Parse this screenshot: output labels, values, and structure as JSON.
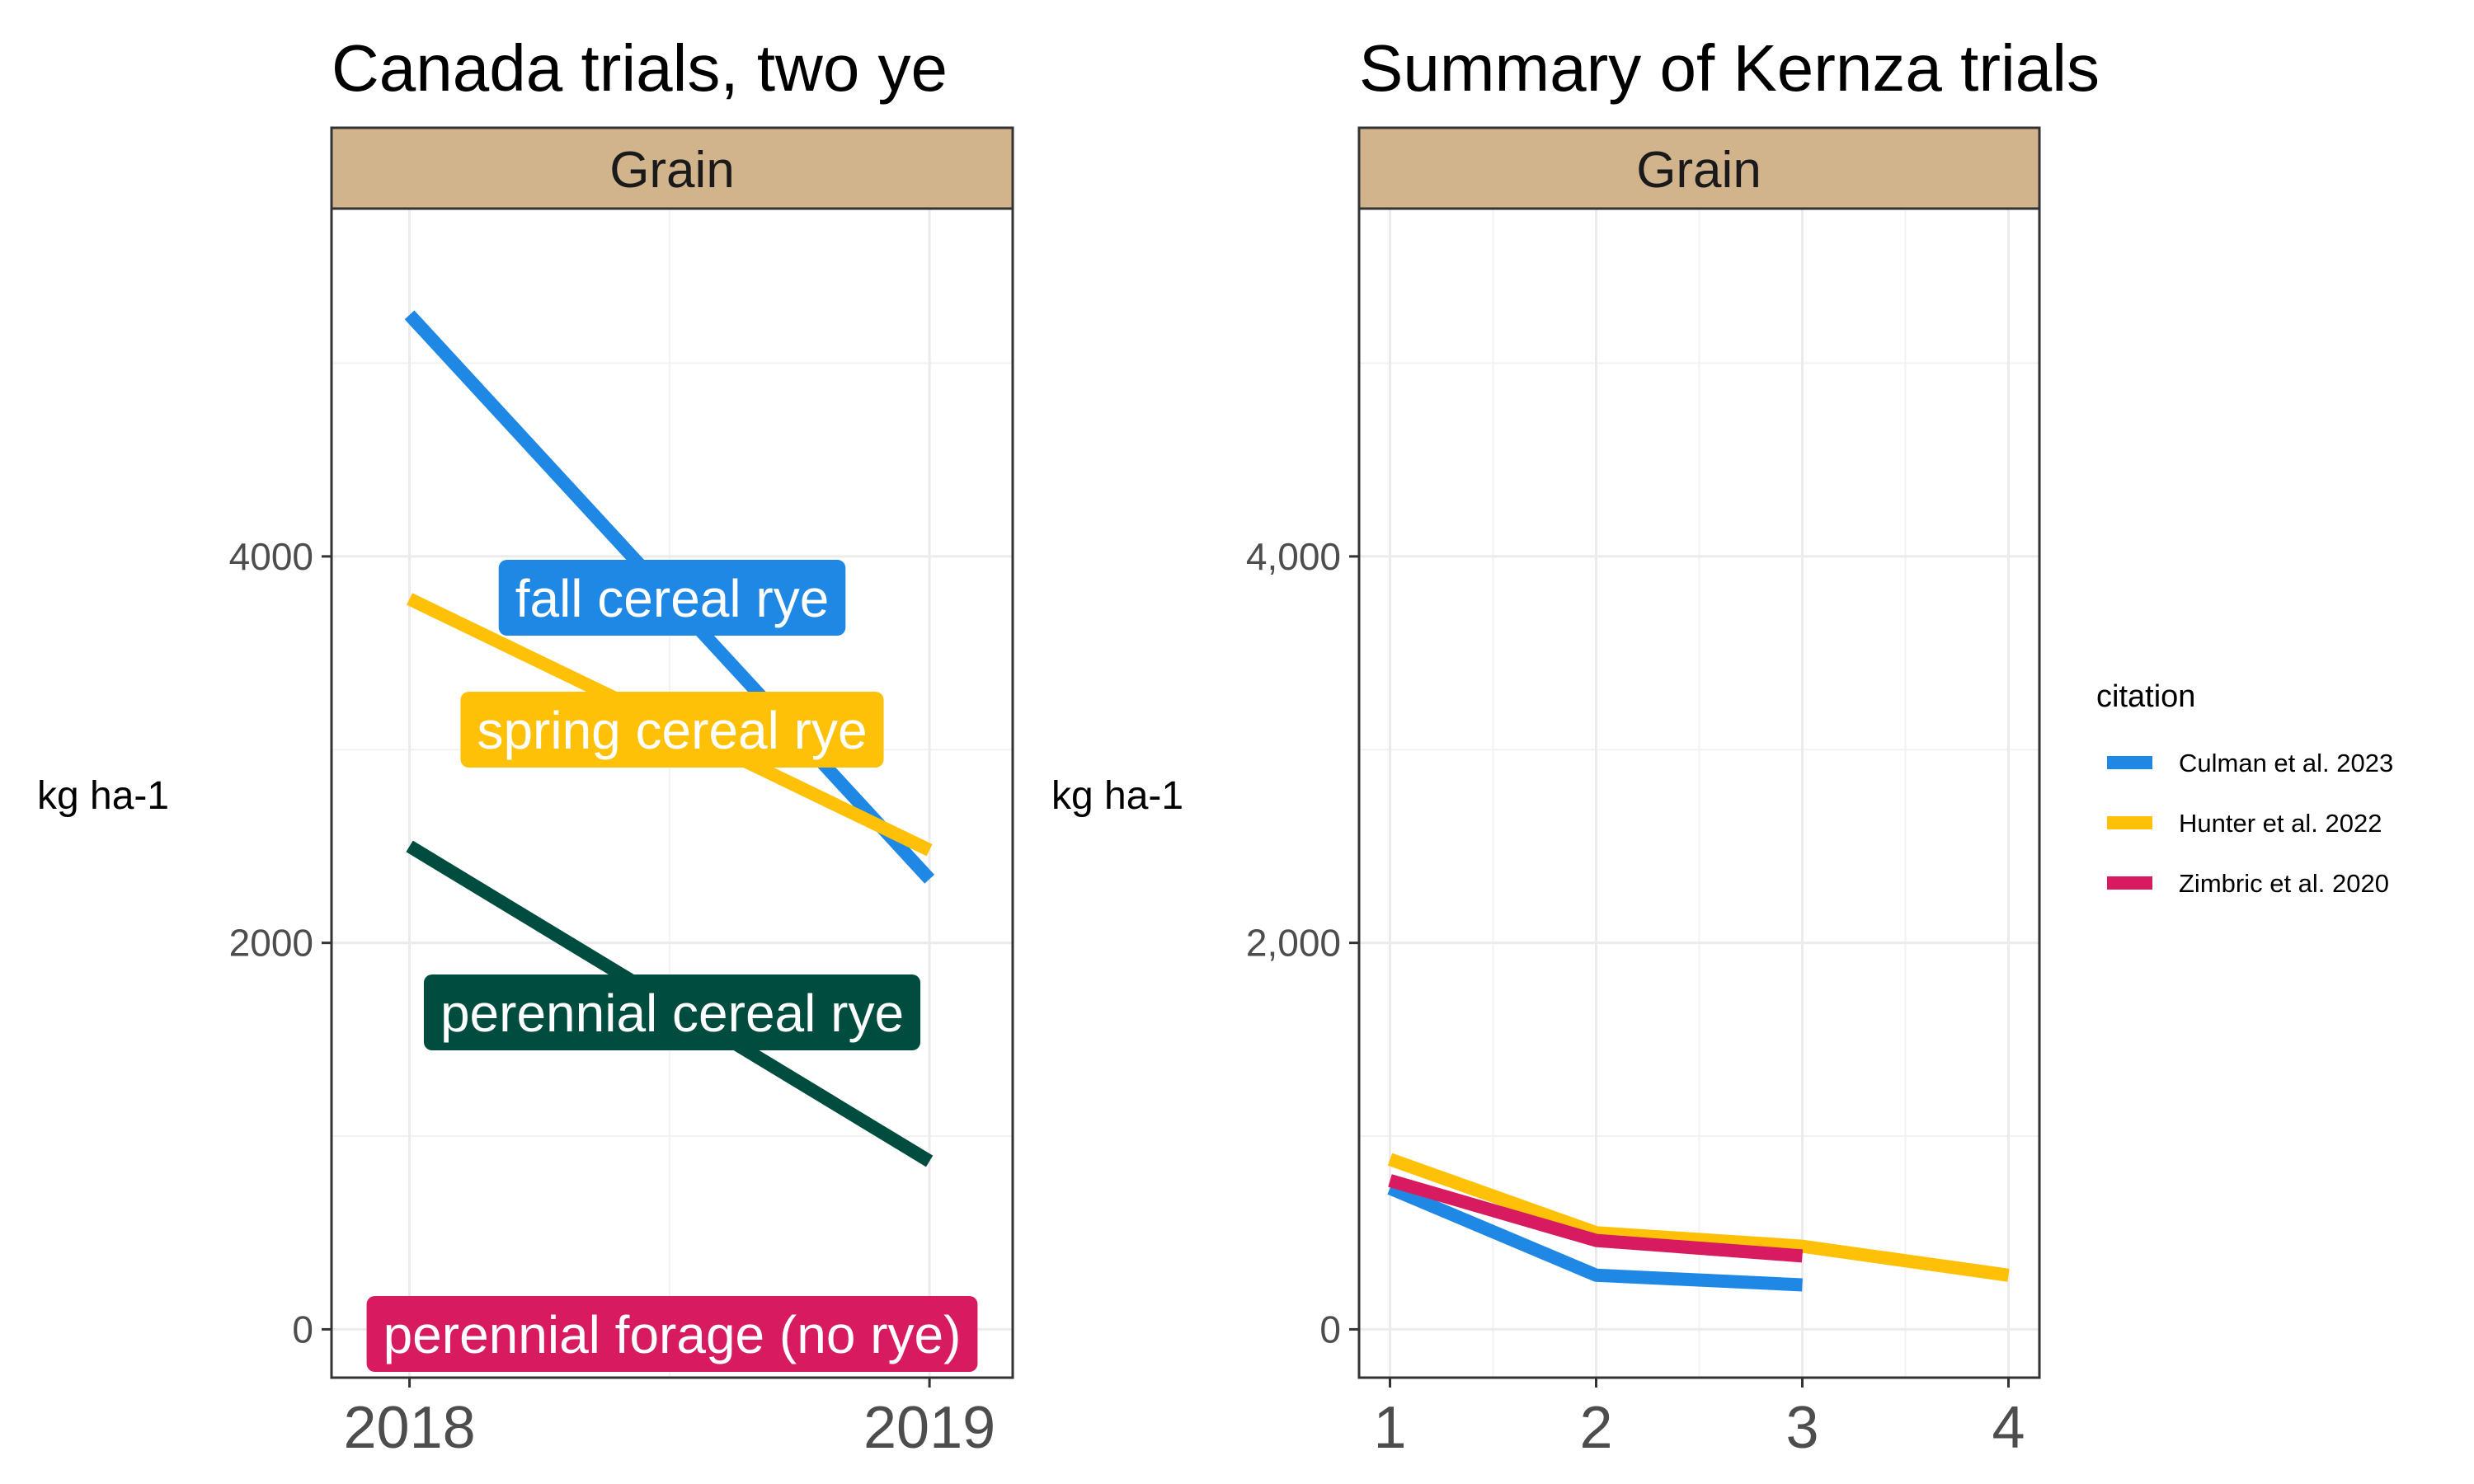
{
  "chart_data": [
    {
      "type": "line",
      "title": "Canada trials, two ye",
      "facet": "Grain",
      "xlabel": "",
      "ylabel": "kg ha-1",
      "x": [
        2018,
        2019
      ],
      "xticks": [
        "2018",
        "2019"
      ],
      "xlim": [
        2017.85,
        2019.16
      ],
      "ylim": [
        -250,
        5800
      ],
      "yticks": [
        0,
        2000,
        4000
      ],
      "ytick_labels": [
        "0",
        "2000",
        "4000"
      ],
      "grid": true,
      "series": [
        {
          "name": "fall cereal rye",
          "values": [
            5250,
            2330
          ],
          "color": "#1F88E5"
        },
        {
          "name": "spring cereal rye",
          "values": [
            3780,
            2480
          ],
          "color": "#FFC107"
        },
        {
          "name": "perennial cereal rye",
          "values": [
            2500,
            870
          ],
          "color": "#004D40"
        },
        {
          "name": "perennial forage (no rye)",
          "values": [
            0,
            0
          ],
          "color": "#D81B60"
        }
      ]
    },
    {
      "type": "line",
      "title": "Summary of Kernza trials",
      "facet": "Grain",
      "xlabel": "",
      "ylabel": "kg ha-1",
      "x": [
        1,
        2,
        3,
        4
      ],
      "xticks": [
        "1",
        "2",
        "3",
        "4"
      ],
      "xlim": [
        0.85,
        4.15
      ],
      "ylim": [
        -250,
        5800
      ],
      "yticks": [
        0,
        2000,
        4000
      ],
      "ytick_labels": [
        "0",
        "2,000",
        "4,000"
      ],
      "grid": true,
      "legend": {
        "title": "citation",
        "position": "right"
      },
      "series": [
        {
          "name": "Culman et al. 2023",
          "x": [
            1,
            2,
            3
          ],
          "values": [
            730,
            280,
            230
          ],
          "color": "#1F88E5"
        },
        {
          "name": "Hunter et al. 2022",
          "x": [
            1,
            2,
            3,
            4
          ],
          "values": [
            880,
            500,
            430,
            280
          ],
          "color": "#FFC107"
        },
        {
          "name": "Zimbric et al. 2020",
          "x": [
            1,
            2,
            3
          ],
          "values": [
            770,
            460,
            380
          ],
          "color": "#D81B60"
        }
      ]
    }
  ]
}
